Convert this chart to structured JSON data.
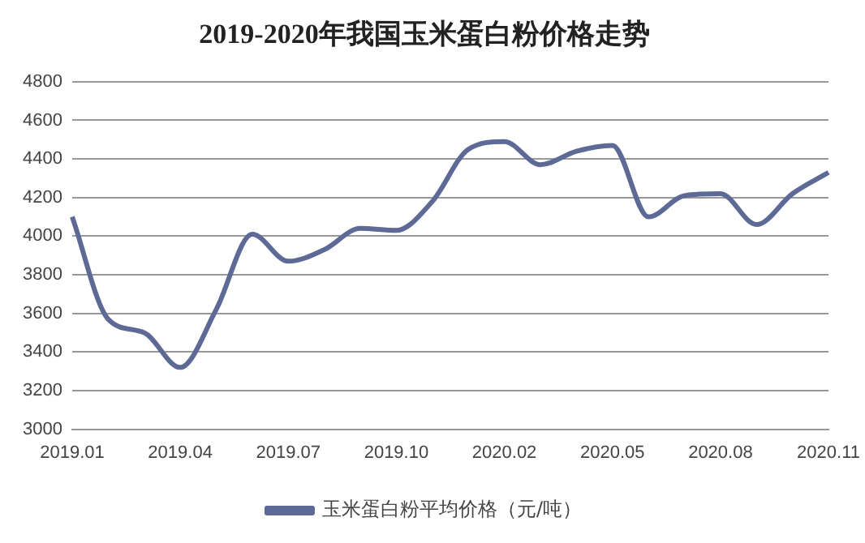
{
  "chart_data": {
    "type": "line",
    "title": "2019-2020年我国玉米蛋白粉价格走势",
    "categories": [
      "2019.01",
      null,
      null,
      "2019.04",
      null,
      null,
      "2019.07",
      null,
      null,
      "2019.10",
      null,
      null,
      "2020.02",
      null,
      null,
      "2020.05",
      null,
      null,
      "2020.08",
      null,
      null,
      "2020.11"
    ],
    "series": [
      {
        "name": "玉米蛋白粉平均价格（元/吨）",
        "color": "#5d6a95",
        "values": [
          4100,
          3570,
          3500,
          3320,
          3620,
          4010,
          3870,
          3930,
          4040,
          4030,
          4180,
          4450,
          4490,
          4370,
          4440,
          4470,
          4100,
          4210,
          4220,
          4060,
          4220,
          4330
        ]
      }
    ],
    "ylim": [
      3000,
      4800
    ],
    "yticks": [
      3000,
      3200,
      3400,
      3600,
      3800,
      4000,
      4200,
      4400,
      4600,
      4800
    ],
    "grid": "y",
    "legend": "bottom",
    "marker": "none",
    "line_style": "solid"
  }
}
